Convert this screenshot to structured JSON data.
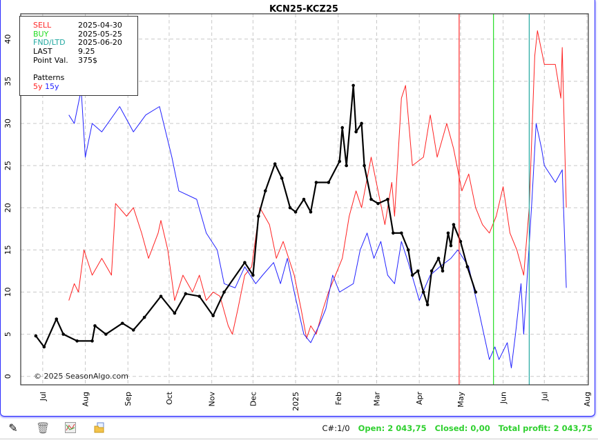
{
  "chart_data": {
    "type": "line",
    "title": "KCN25-KCZ25",
    "xlim": [
      "2024-06-15",
      "2025-08-01"
    ],
    "ylim": [
      -1,
      43
    ],
    "yticks": [
      0,
      5,
      10,
      15,
      20,
      25,
      30,
      35,
      40
    ],
    "xticks": [
      {
        "date": "2024-07-01",
        "label": "Jul"
      },
      {
        "date": "2024-08-01",
        "label": "Aug"
      },
      {
        "date": "2024-09-01",
        "label": "Sep"
      },
      {
        "date": "2024-10-01",
        "label": "Oct"
      },
      {
        "date": "2024-11-01",
        "label": "Nov"
      },
      {
        "date": "2024-12-01",
        "label": "Dec"
      },
      {
        "date": "2025-01-01",
        "label": "2025"
      },
      {
        "date": "2025-02-01",
        "label": "Feb"
      },
      {
        "date": "2025-03-01",
        "label": "Mar"
      },
      {
        "date": "2025-04-01",
        "label": "Apr"
      },
      {
        "date": "2025-05-01",
        "label": "May"
      },
      {
        "date": "2025-06-01",
        "label": "Jun"
      },
      {
        "date": "2025-07-01",
        "label": "Jul"
      },
      {
        "date": "2025-08-01",
        "label": "Aug"
      }
    ],
    "grid": true,
    "markers": [
      {
        "label": "SELL",
        "date": "2025-04-30",
        "color": "#ff2a2a"
      },
      {
        "label": "BUY",
        "date": "2025-05-25",
        "color": "#22dd22"
      },
      {
        "label": "FND/LTD",
        "date": "2025-06-20",
        "color": "#20a8a0"
      }
    ],
    "series": [
      {
        "name": "5y",
        "color": "#ff2020",
        "points": [
          [
            "2024-07-20",
            9
          ],
          [
            "2024-07-24",
            11
          ],
          [
            "2024-07-27",
            10
          ],
          [
            "2024-07-31",
            15
          ],
          [
            "2024-08-06",
            12
          ],
          [
            "2024-08-13",
            14
          ],
          [
            "2024-08-20",
            12
          ],
          [
            "2024-08-23",
            20.5
          ],
          [
            "2024-08-31",
            19
          ],
          [
            "2024-09-05",
            20
          ],
          [
            "2024-09-11",
            17
          ],
          [
            "2024-09-16",
            14
          ],
          [
            "2024-09-23",
            17
          ],
          [
            "2024-09-25",
            18.5
          ],
          [
            "2024-09-30",
            15
          ],
          [
            "2024-10-05",
            9
          ],
          [
            "2024-10-11",
            12
          ],
          [
            "2024-10-18",
            10
          ],
          [
            "2024-10-23",
            12
          ],
          [
            "2024-10-28",
            9
          ],
          [
            "2024-11-02",
            10
          ],
          [
            "2024-11-07",
            9.5
          ],
          [
            "2024-11-13",
            6
          ],
          [
            "2024-11-16",
            5
          ],
          [
            "2024-11-20",
            8
          ],
          [
            "2024-11-25",
            12
          ],
          [
            "2024-11-30",
            13
          ],
          [
            "2024-12-06",
            20
          ],
          [
            "2024-12-13",
            18
          ],
          [
            "2024-12-18",
            14
          ],
          [
            "2024-12-23",
            16
          ],
          [
            "2024-12-31",
            12
          ],
          [
            "2025-01-05",
            8
          ],
          [
            "2025-01-09",
            4.5
          ],
          [
            "2025-01-12",
            6
          ],
          [
            "2025-01-16",
            5
          ],
          [
            "2025-01-21",
            8
          ],
          [
            "2025-01-25",
            10
          ],
          [
            "2025-01-30",
            12
          ],
          [
            "2025-02-04",
            14
          ],
          [
            "2025-02-09",
            19
          ],
          [
            "2025-02-14",
            22
          ],
          [
            "2025-02-18",
            20
          ],
          [
            "2025-02-25",
            26
          ],
          [
            "2025-03-02",
            22
          ],
          [
            "2025-03-07",
            18
          ],
          [
            "2025-03-12",
            23
          ],
          [
            "2025-03-14",
            19
          ],
          [
            "2025-03-19",
            33
          ],
          [
            "2025-03-22",
            34.5
          ],
          [
            "2025-03-27",
            25
          ],
          [
            "2025-04-04",
            26
          ],
          [
            "2025-04-09",
            31
          ],
          [
            "2025-04-14",
            26
          ],
          [
            "2025-04-21",
            30
          ],
          [
            "2025-04-26",
            27
          ],
          [
            "2025-05-02",
            22
          ],
          [
            "2025-05-07",
            24
          ],
          [
            "2025-05-12",
            20
          ],
          [
            "2025-05-17",
            18
          ],
          [
            "2025-05-22",
            17
          ],
          [
            "2025-05-27",
            19
          ],
          [
            "2025-06-01",
            22.5
          ],
          [
            "2025-06-06",
            17
          ],
          [
            "2025-06-11",
            15
          ],
          [
            "2025-06-16",
            12
          ],
          [
            "2025-06-20",
            20
          ],
          [
            "2025-06-24",
            38
          ],
          [
            "2025-06-26",
            41
          ],
          [
            "2025-07-01",
            37
          ],
          [
            "2025-07-09",
            37
          ],
          [
            "2025-07-13",
            33
          ],
          [
            "2025-07-14",
            39
          ],
          [
            "2025-07-15",
            32.5
          ],
          [
            "2025-07-17",
            20
          ]
        ]
      },
      {
        "name": "15y",
        "color": "#2020ff",
        "points": [
          [
            "2024-07-20",
            31
          ],
          [
            "2024-07-24",
            30
          ],
          [
            "2024-07-29",
            34
          ],
          [
            "2024-08-01",
            26
          ],
          [
            "2024-08-06",
            30
          ],
          [
            "2024-08-13",
            29
          ],
          [
            "2024-08-26",
            32
          ],
          [
            "2024-09-05",
            29
          ],
          [
            "2024-09-14",
            31
          ],
          [
            "2024-09-24",
            32
          ],
          [
            "2024-10-03",
            26
          ],
          [
            "2024-10-08",
            22
          ],
          [
            "2024-10-21",
            21
          ],
          [
            "2024-10-28",
            17
          ],
          [
            "2024-11-05",
            15
          ],
          [
            "2024-11-10",
            11
          ],
          [
            "2024-11-18",
            10.5
          ],
          [
            "2024-11-25",
            13
          ],
          [
            "2024-12-03",
            11
          ],
          [
            "2024-12-08",
            12
          ],
          [
            "2024-12-16",
            13.5
          ],
          [
            "2024-12-21",
            11
          ],
          [
            "2024-12-26",
            14
          ],
          [
            "2024-12-31",
            10
          ],
          [
            "2025-01-07",
            5
          ],
          [
            "2025-01-12",
            4
          ],
          [
            "2025-01-18",
            6
          ],
          [
            "2025-01-23",
            8
          ],
          [
            "2025-01-28",
            12
          ],
          [
            "2025-02-02",
            10
          ],
          [
            "2025-02-07",
            10.5
          ],
          [
            "2025-02-12",
            11
          ],
          [
            "2025-02-17",
            15
          ],
          [
            "2025-02-22",
            17
          ],
          [
            "2025-02-27",
            14
          ],
          [
            "2025-03-04",
            16
          ],
          [
            "2025-03-09",
            12
          ],
          [
            "2025-03-14",
            11
          ],
          [
            "2025-03-19",
            16
          ],
          [
            "2025-03-24",
            13.5
          ],
          [
            "2025-04-01",
            9
          ],
          [
            "2025-04-09",
            12
          ],
          [
            "2025-04-16",
            13
          ],
          [
            "2025-04-24",
            14
          ],
          [
            "2025-04-29",
            15
          ],
          [
            "2025-05-07",
            13
          ],
          [
            "2025-05-14",
            8
          ],
          [
            "2025-05-18",
            5
          ],
          [
            "2025-05-22",
            2
          ],
          [
            "2025-05-26",
            3.5
          ],
          [
            "2025-05-29",
            2
          ],
          [
            "2025-06-04",
            4
          ],
          [
            "2025-06-07",
            1
          ],
          [
            "2025-06-10",
            5
          ],
          [
            "2025-06-14",
            11
          ],
          [
            "2025-06-16",
            5
          ],
          [
            "2025-06-19",
            13
          ],
          [
            "2025-06-22",
            21
          ],
          [
            "2025-06-25",
            30
          ],
          [
            "2025-06-29",
            27
          ],
          [
            "2025-07-01",
            25
          ],
          [
            "2025-07-09",
            23
          ],
          [
            "2025-07-14",
            24.5
          ],
          [
            "2025-07-17",
            10.5
          ]
        ]
      },
      {
        "color": "#000000",
        "markers": true,
        "points": [
          [
            "2024-06-26",
            4.8
          ],
          [
            "2024-07-02",
            3.5
          ],
          [
            "2024-07-11",
            6.8
          ],
          [
            "2024-07-16",
            5.0
          ],
          [
            "2024-07-26",
            4.2
          ],
          [
            "2024-08-06",
            4.2
          ],
          [
            "2024-08-08",
            6.0
          ],
          [
            "2024-08-16",
            5.0
          ],
          [
            "2024-08-28",
            6.3
          ],
          [
            "2024-09-05",
            5.5
          ],
          [
            "2024-09-13",
            7.0
          ],
          [
            "2024-09-25",
            9.5
          ],
          [
            "2024-10-05",
            7.5
          ],
          [
            "2024-10-13",
            9.8
          ],
          [
            "2024-10-23",
            9.5
          ],
          [
            "2024-11-02",
            7.2
          ],
          [
            "2024-11-10",
            10.0
          ],
          [
            "2024-11-25",
            13.5
          ],
          [
            "2024-12-01",
            12.0
          ],
          [
            "2024-12-05",
            19.0
          ],
          [
            "2024-12-10",
            22.0
          ],
          [
            "2024-12-17",
            25.2
          ],
          [
            "2024-12-22",
            23.5
          ],
          [
            "2024-12-28",
            20.0
          ],
          [
            "2025-01-01",
            19.5
          ],
          [
            "2025-01-07",
            21.0
          ],
          [
            "2025-01-12",
            19.5
          ],
          [
            "2025-01-16",
            23.0
          ],
          [
            "2025-01-25",
            23.0
          ],
          [
            "2025-02-02",
            25.5
          ],
          [
            "2025-02-04",
            29.5
          ],
          [
            "2025-02-07",
            25.0
          ],
          [
            "2025-02-12",
            34.5
          ],
          [
            "2025-02-14",
            29.0
          ],
          [
            "2025-02-18",
            30.0
          ],
          [
            "2025-02-20",
            25.0
          ],
          [
            "2025-02-25",
            21.0
          ],
          [
            "2025-03-02",
            20.5
          ],
          [
            "2025-03-09",
            21.0
          ],
          [
            "2025-03-13",
            17.0
          ],
          [
            "2025-03-19",
            17.0
          ],
          [
            "2025-03-24",
            15.0
          ],
          [
            "2025-03-27",
            12.0
          ],
          [
            "2025-03-31",
            12.5
          ],
          [
            "2025-04-04",
            10.0
          ],
          [
            "2025-04-07",
            8.5
          ],
          [
            "2025-04-10",
            12.5
          ],
          [
            "2025-04-15",
            14.0
          ],
          [
            "2025-04-18",
            12.5
          ],
          [
            "2025-04-22",
            17.0
          ],
          [
            "2025-04-24",
            15.5
          ],
          [
            "2025-04-26",
            18.0
          ],
          [
            "2025-05-01",
            16.0
          ],
          [
            "2025-05-06",
            13.0
          ],
          [
            "2025-05-12",
            10.0
          ]
        ]
      }
    ]
  },
  "legend": {
    "sell": {
      "label": "SELL",
      "value": "2025-04-30"
    },
    "buy": {
      "label": "BUY",
      "value": "2025-05-25"
    },
    "fnd": {
      "label": "FND/LTD",
      "value": "2025-06-20"
    },
    "last": {
      "label": "LAST",
      "value": "9.25"
    },
    "point_val": {
      "label": "Point Val.",
      "value": "375$"
    },
    "patterns_label": "Patterns",
    "pattern_5y": "5y",
    "pattern_15y": "15y"
  },
  "copyright": "© 2025 SeasonAlgo.com",
  "toolbar": {
    "icons": [
      "pencil-icon",
      "trash-icon",
      "chart-icon",
      "folder-icon"
    ],
    "counter": "C#:1/0",
    "open": "Open: 2 043,75",
    "closed": "Closed: 0,00",
    "total": "Total profit: 2 043,75"
  },
  "colors": {
    "sell": "#ff2a2a",
    "buy": "#22dd22",
    "fnd": "#20a8a0",
    "profit": "#2fd02f",
    "frame": "#2a2aff"
  }
}
